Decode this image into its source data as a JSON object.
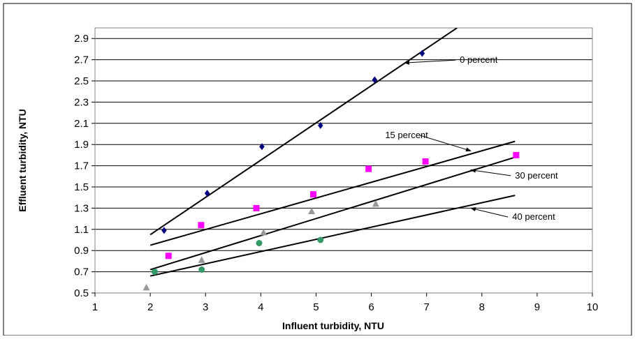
{
  "chart_data": {
    "type": "scatter",
    "title": "",
    "xlabel": "Influent turbidity, NTU",
    "ylabel": "Effluent turbidity, NTU",
    "xlim": [
      1,
      10
    ],
    "ylim": [
      0.5,
      3.0
    ],
    "x_ticks": [
      "1",
      "2",
      "3",
      "4",
      "5",
      "6",
      "7",
      "8",
      "9",
      "10"
    ],
    "y_ticks": [
      "0.5",
      "0.7",
      "0.9",
      "1.1",
      "1.3",
      "1.5",
      "1.7",
      "1.9",
      "2.1",
      "2.3",
      "2.5",
      "2.7",
      "2.9"
    ],
    "grid": "horizontal",
    "legend": "none",
    "series": [
      {
        "marker": "diamond",
        "color": "#000080",
        "points": [
          [
            2.25,
            1.09
          ],
          [
            3.03,
            1.44
          ],
          [
            4.02,
            1.88
          ],
          [
            5.08,
            2.08
          ],
          [
            6.06,
            2.51
          ],
          [
            6.92,
            2.76
          ]
        ],
        "trend": [
          [
            2.0,
            1.05
          ],
          [
            7.55,
            3.0
          ]
        ]
      },
      {
        "marker": "square",
        "color": "#ff00ff",
        "points": [
          [
            2.33,
            0.85
          ],
          [
            2.92,
            1.14
          ],
          [
            3.92,
            1.3
          ],
          [
            4.95,
            1.43
          ],
          [
            5.95,
            1.67
          ],
          [
            6.98,
            1.74
          ],
          [
            8.62,
            1.8
          ]
        ],
        "trend": [
          [
            2.0,
            0.95
          ],
          [
            8.6,
            1.93
          ]
        ]
      },
      {
        "marker": "triangle",
        "color": "#999999",
        "points": [
          [
            1.93,
            0.55
          ],
          [
            2.93,
            0.81
          ],
          [
            4.05,
            1.07
          ],
          [
            4.92,
            1.27
          ],
          [
            6.08,
            1.34
          ]
        ],
        "trend": [
          [
            2.0,
            0.72
          ],
          [
            8.6,
            1.78
          ]
        ]
      },
      {
        "marker": "circle",
        "color": "#339966",
        "points": [
          [
            2.08,
            0.7
          ],
          [
            2.93,
            0.72
          ],
          [
            3.97,
            0.97
          ],
          [
            5.08,
            1.0
          ]
        ],
        "trend": [
          [
            2.0,
            0.66
          ],
          [
            8.6,
            1.42
          ]
        ]
      }
    ],
    "annotations": [
      {
        "text": "0 percent",
        "text_at": [
          7.6,
          2.67
        ],
        "arrow_to": [
          6.6,
          2.67
        ]
      },
      {
        "text": "15 percent",
        "text_at": [
          6.25,
          1.96
        ],
        "arrow_to": [
          7.8,
          1.84
        ]
      },
      {
        "text": "30 percent",
        "text_at": [
          8.6,
          1.58
        ],
        "arrow_to": [
          7.8,
          1.66
        ]
      },
      {
        "text": "40 percent",
        "text_at": [
          8.55,
          1.19
        ],
        "arrow_to": [
          7.8,
          1.3
        ]
      }
    ],
    "colors": {
      "line": "#000000",
      "grid": "#000000",
      "plot_border": "#808080"
    }
  }
}
